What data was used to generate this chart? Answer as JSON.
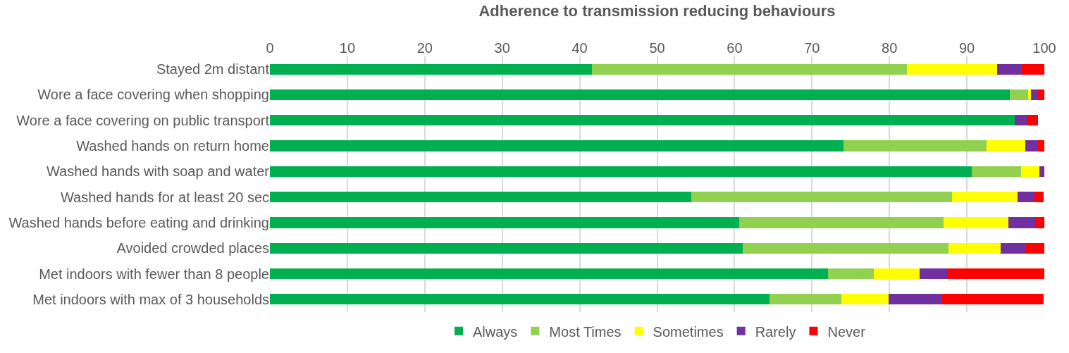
{
  "chart_data": {
    "type": "bar",
    "orientation": "horizontal",
    "stacked": true,
    "title": "Adherence to transmission reducing behaviours",
    "categories": [
      "Stayed 2m distant",
      "Wore a face covering when shopping",
      "Wore a face covering on public transport",
      "Washed hands on return home",
      "Washed hands with soap and water",
      "Washed hands for at least 20 sec",
      "Washed hands before eating and drinking",
      "Avoided crowded places",
      "Met indoors with fewer than 8 people",
      "Met indoors with max of 3 households"
    ],
    "series": [
      {
        "name": "Always",
        "color": "#00b050",
        "values": [
          41.6,
          95.5,
          96.2,
          74.1,
          90.6,
          54.4,
          60.6,
          61.1,
          72.1,
          64.5
        ]
      },
      {
        "name": "Most Times",
        "color": "#92d050",
        "values": [
          40.7,
          2.4,
          null,
          18.4,
          6.4,
          33.7,
          26.4,
          26.5,
          5.9,
          9.3
        ]
      },
      {
        "name": "Sometimes",
        "color": "#ffff00",
        "values": [
          11.6,
          0.4,
          0,
          5.0,
          2.4,
          8.4,
          8.4,
          6.8,
          5.9,
          6.1
        ]
      },
      {
        "name": "Rarely",
        "color": "#7030a0",
        "values": [
          3.2,
          0.9,
          1.5,
          1.7,
          0.4,
          2.2,
          3.4,
          3.2,
          3.5,
          6.9
        ]
      },
      {
        "name": "Never",
        "color": "#ff0000",
        "values": [
          2.9,
          0.8,
          1.5,
          0.8,
          0.2,
          1.2,
          1.2,
          2.4,
          12.6,
          13.1
        ]
      }
    ],
    "xlim": [
      0,
      100
    ],
    "xticks": [
      0,
      10,
      20,
      30,
      40,
      50,
      60,
      70,
      80,
      90,
      100
    ],
    "grid": "x",
    "legend": "bottom"
  }
}
